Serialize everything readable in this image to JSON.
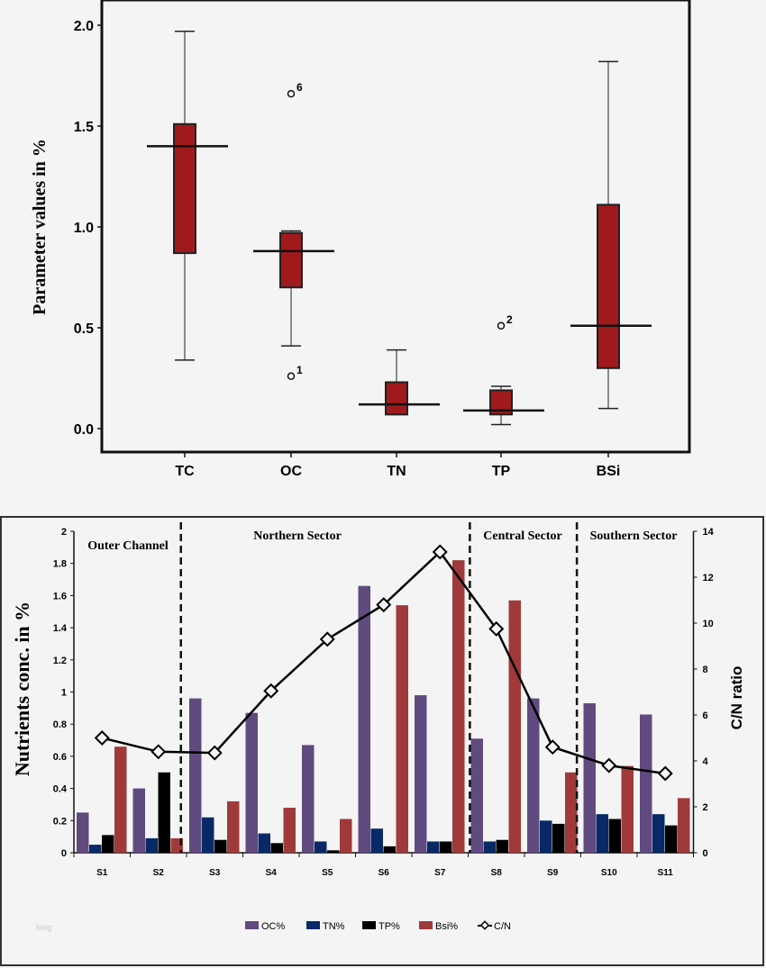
{
  "chart_data": [
    {
      "type": "boxplot",
      "ylabel": "Parameter values in %",
      "ylim": [
        0,
        2.0
      ],
      "yticks": [
        "0.0",
        "0.5",
        "1.0",
        "1.5",
        "2.0"
      ],
      "categories": [
        "TC",
        "OC",
        "TN",
        "TP",
        "BSi"
      ],
      "boxes": [
        {
          "name": "TC",
          "min": 0.34,
          "q1": 0.87,
          "median": 1.4,
          "q3": 1.51,
          "max": 1.97,
          "outliers": []
        },
        {
          "name": "OC",
          "min": 0.41,
          "q1": 0.7,
          "median": 0.88,
          "q3": 0.97,
          "max": 0.98,
          "outliers": [
            {
              "value": 1.66,
              "label": "6"
            },
            {
              "value": 0.26,
              "label": "1"
            }
          ]
        },
        {
          "name": "TN",
          "min": 0.07,
          "q1": 0.07,
          "median": 0.12,
          "q3": 0.23,
          "max": 0.39,
          "outliers": []
        },
        {
          "name": "TP",
          "min": 0.02,
          "q1": 0.07,
          "median": 0.09,
          "q3": 0.19,
          "max": 0.21,
          "outliers": [
            {
              "value": 0.51,
              "label": "2"
            }
          ]
        },
        {
          "name": "BSi",
          "min": 0.1,
          "q1": 0.3,
          "median": 0.51,
          "q3": 1.11,
          "max": 1.82,
          "outliers": []
        }
      ],
      "box_color": "#a0191c"
    },
    {
      "type": "bar",
      "ylabel": "Nutrients  conc. in %",
      "y2label": "C/N ratio",
      "ylim": [
        0,
        2
      ],
      "y2lim": [
        0,
        14
      ],
      "yticks": [
        "0",
        "0.2",
        "0.4",
        "0.6",
        "0.8",
        "1",
        "1.2",
        "1.4",
        "1.6",
        "1.8",
        "2"
      ],
      "y2ticks": [
        "0",
        "2",
        "4",
        "6",
        "8",
        "10",
        "12",
        "14"
      ],
      "categories": [
        "S1",
        "S2",
        "S3",
        "S4",
        "S5",
        "S6",
        "S7",
        "S8",
        "S9",
        "S10",
        "S11"
      ],
      "sectors": [
        "Outer Channel",
        "Northern Sector",
        "Central Sector",
        "Southern Sector"
      ],
      "series": [
        {
          "name": "OC%",
          "color": "#614a7f",
          "values": [
            0.25,
            0.4,
            0.96,
            0.87,
            0.67,
            1.66,
            0.98,
            0.71,
            0.96,
            0.93,
            0.86
          ]
        },
        {
          "name": "TN%",
          "color": "#082966",
          "values": [
            0.05,
            0.09,
            0.22,
            0.12,
            0.07,
            0.15,
            0.07,
            0.07,
            0.2,
            0.24,
            0.24
          ]
        },
        {
          "name": "TP%",
          "color": "#000000",
          "values": [
            0.11,
            0.5,
            0.08,
            0.06,
            0.015,
            0.04,
            0.07,
            0.08,
            0.18,
            0.21,
            0.17
          ]
        },
        {
          "name": "Bsi%",
          "color": "#a03a3a",
          "values": [
            0.66,
            0.09,
            0.32,
            0.28,
            0.21,
            1.54,
            1.82,
            1.57,
            0.5,
            0.54,
            0.34
          ]
        },
        {
          "name": "C/N",
          "color": "#000000",
          "axis": "right",
          "type": "line",
          "values": [
            5.0,
            4.4,
            4.35,
            7.05,
            9.3,
            10.8,
            13.1,
            9.75,
            4.6,
            3.8,
            3.45
          ]
        }
      ],
      "legend_position": "bottom"
    }
  ],
  "watermark": "blog"
}
